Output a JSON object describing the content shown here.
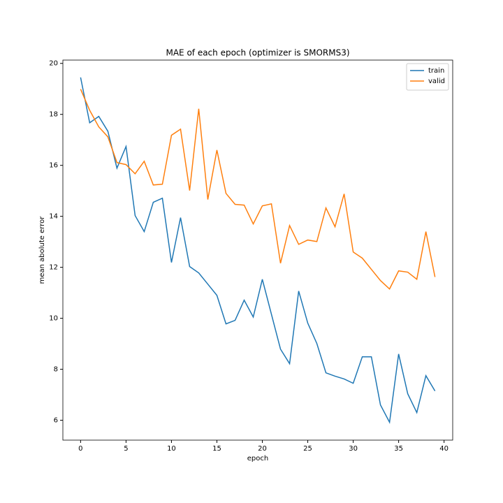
{
  "chart_data": {
    "type": "line",
    "title": "MAE of each epoch (optimizer is SMORMS3)",
    "x_label": "epoch",
    "y_label": "mean abolute error",
    "x": [
      0,
      1,
      2,
      3,
      4,
      5,
      6,
      7,
      8,
      9,
      10,
      11,
      12,
      13,
      14,
      15,
      16,
      17,
      18,
      19,
      20,
      21,
      22,
      23,
      24,
      25,
      26,
      27,
      28,
      29,
      30,
      31,
      32,
      33,
      34,
      35,
      36,
      37,
      38,
      39
    ],
    "series": [
      {
        "name": "train",
        "color": "#1f77b4",
        "values": [
          19.45,
          17.67,
          17.92,
          17.34,
          15.89,
          16.74,
          14.03,
          13.4,
          14.55,
          14.71,
          12.19,
          13.95,
          12.03,
          11.78,
          11.34,
          10.9,
          9.78,
          9.92,
          10.71,
          10.05,
          11.53,
          10.16,
          8.79,
          8.22,
          11.07,
          9.81,
          9.01,
          7.86,
          7.73,
          7.62,
          7.45,
          8.49,
          8.49,
          6.6,
          5.92,
          8.6,
          7.04,
          6.3,
          7.75,
          7.15
        ]
      },
      {
        "name": "valid",
        "color": "#ff7f0e",
        "values": [
          18.99,
          18.16,
          17.51,
          17.12,
          16.11,
          16.03,
          15.67,
          16.16,
          15.23,
          15.26,
          17.18,
          17.42,
          15.01,
          18.22,
          14.66,
          16.6,
          14.9,
          14.47,
          14.44,
          13.7,
          14.41,
          14.49,
          12.16,
          13.64,
          12.9,
          13.07,
          13.01,
          14.33,
          13.59,
          14.88,
          12.6,
          12.36,
          11.92,
          11.48,
          11.15,
          11.86,
          11.81,
          11.53,
          13.4,
          11.62
        ]
      }
    ],
    "xlim": [
      -1.95,
      40.95
    ],
    "xticks": [
      0,
      5,
      10,
      15,
      20,
      25,
      30,
      35,
      40
    ],
    "ylim": [
      5.22,
      20.13
    ],
    "yticks": [
      6,
      8,
      10,
      12,
      14,
      16,
      18,
      20
    ],
    "grid": false,
    "legend": "upper right"
  }
}
